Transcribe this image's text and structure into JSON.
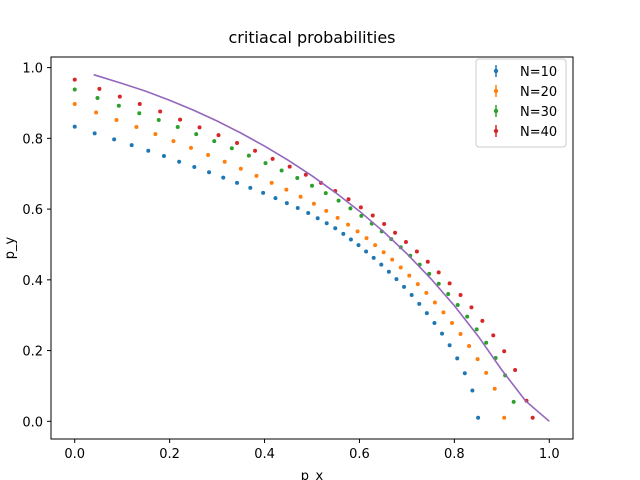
{
  "chart_data": {
    "type": "scatter",
    "title": "critiacal probabilities",
    "xlabel": "p_x",
    "ylabel": "p_y",
    "xlim": [
      -0.05,
      1.05
    ],
    "ylim": [
      -0.05,
      1.03
    ],
    "xticks": [
      "0.0",
      "0.2",
      "0.4",
      "0.6",
      "0.8",
      "1.0"
    ],
    "yticks": [
      "0.0",
      "0.2",
      "0.4",
      "0.6",
      "0.8",
      "1.0"
    ],
    "grid": false,
    "legend": "top-right",
    "series": [
      {
        "name": "N=10",
        "color": "#1f77b4",
        "x": [
          0.0,
          0.042,
          0.083,
          0.12,
          0.155,
          0.188,
          0.22,
          0.252,
          0.283,
          0.313,
          0.342,
          0.37,
          0.397,
          0.423,
          0.447,
          0.47,
          0.492,
          0.512,
          0.531,
          0.549,
          0.566,
          0.582,
          0.598,
          0.614,
          0.63,
          0.646,
          0.662,
          0.678,
          0.694,
          0.71,
          0.726,
          0.742,
          0.758,
          0.774,
          0.79,
          0.806,
          0.822,
          0.838,
          0.85
        ],
        "y": [
          0.833,
          0.814,
          0.797,
          0.781,
          0.765,
          0.75,
          0.734,
          0.719,
          0.704,
          0.689,
          0.674,
          0.66,
          0.646,
          0.631,
          0.617,
          0.603,
          0.589,
          0.574,
          0.56,
          0.546,
          0.53,
          0.514,
          0.498,
          0.48,
          0.462,
          0.443,
          0.423,
          0.402,
          0.38,
          0.357,
          0.332,
          0.306,
          0.278,
          0.248,
          0.215,
          0.178,
          0.136,
          0.087,
          0.01
        ]
      },
      {
        "name": "N=20",
        "color": "#ff7f0e",
        "x": [
          0.0,
          0.045,
          0.088,
          0.13,
          0.17,
          0.208,
          0.245,
          0.281,
          0.316,
          0.35,
          0.383,
          0.415,
          0.446,
          0.476,
          0.504,
          0.53,
          0.554,
          0.576,
          0.596,
          0.615,
          0.633,
          0.651,
          0.669,
          0.687,
          0.705,
          0.723,
          0.741,
          0.759,
          0.777,
          0.795,
          0.813,
          0.831,
          0.849,
          0.867,
          0.885,
          0.905
        ],
        "y": [
          0.897,
          0.873,
          0.852,
          0.832,
          0.812,
          0.792,
          0.773,
          0.753,
          0.734,
          0.714,
          0.694,
          0.674,
          0.655,
          0.635,
          0.615,
          0.595,
          0.575,
          0.556,
          0.537,
          0.518,
          0.498,
          0.478,
          0.457,
          0.435,
          0.412,
          0.388,
          0.363,
          0.336,
          0.308,
          0.278,
          0.247,
          0.213,
          0.176,
          0.137,
          0.092,
          0.01
        ]
      },
      {
        "name": "N=30",
        "color": "#2ca02c",
        "x": [
          0.0,
          0.048,
          0.093,
          0.136,
          0.177,
          0.217,
          0.256,
          0.294,
          0.331,
          0.367,
          0.402,
          0.436,
          0.469,
          0.5,
          0.529,
          0.556,
          0.581,
          0.604,
          0.626,
          0.647,
          0.667,
          0.687,
          0.707,
          0.727,
          0.747,
          0.767,
          0.787,
          0.807,
          0.827,
          0.847,
          0.867,
          0.887,
          0.907,
          0.925
        ],
        "y": [
          0.938,
          0.914,
          0.892,
          0.871,
          0.852,
          0.832,
          0.812,
          0.792,
          0.772,
          0.751,
          0.73,
          0.709,
          0.688,
          0.666,
          0.645,
          0.624,
          0.602,
          0.581,
          0.559,
          0.537,
          0.515,
          0.492,
          0.468,
          0.443,
          0.417,
          0.389,
          0.36,
          0.329,
          0.296,
          0.26,
          0.222,
          0.179,
          0.13,
          0.055
        ]
      },
      {
        "name": "N=40",
        "color": "#d62728",
        "x": [
          0.0,
          0.052,
          0.095,
          0.137,
          0.18,
          0.222,
          0.263,
          0.303,
          0.342,
          0.38,
          0.417,
          0.453,
          0.487,
          0.519,
          0.549,
          0.577,
          0.603,
          0.628,
          0.652,
          0.675,
          0.698,
          0.721,
          0.744,
          0.767,
          0.79,
          0.813,
          0.836,
          0.859,
          0.882,
          0.905,
          0.928,
          0.952,
          0.965
        ],
        "y": [
          0.966,
          0.94,
          0.918,
          0.897,
          0.876,
          0.853,
          0.831,
          0.809,
          0.787,
          0.765,
          0.742,
          0.72,
          0.697,
          0.674,
          0.651,
          0.628,
          0.605,
          0.582,
          0.558,
          0.533,
          0.507,
          0.48,
          0.451,
          0.421,
          0.39,
          0.357,
          0.322,
          0.284,
          0.243,
          0.198,
          0.145,
          0.058,
          0.01
        ]
      },
      {
        "name": "",
        "color": "#9467bd",
        "line": true,
        "x": [
          0.04,
          0.1,
          0.15,
          0.2,
          0.25,
          0.3,
          0.35,
          0.4,
          0.45,
          0.5,
          0.55,
          0.6,
          0.65,
          0.7,
          0.75,
          0.8,
          0.85,
          0.9,
          0.95,
          1.0
        ],
        "y": [
          0.98,
          0.955,
          0.933,
          0.908,
          0.88,
          0.849,
          0.815,
          0.778,
          0.738,
          0.694,
          0.646,
          0.594,
          0.537,
          0.474,
          0.404,
          0.327,
          0.241,
          0.145,
          0.058,
          0.0
        ]
      }
    ]
  }
}
